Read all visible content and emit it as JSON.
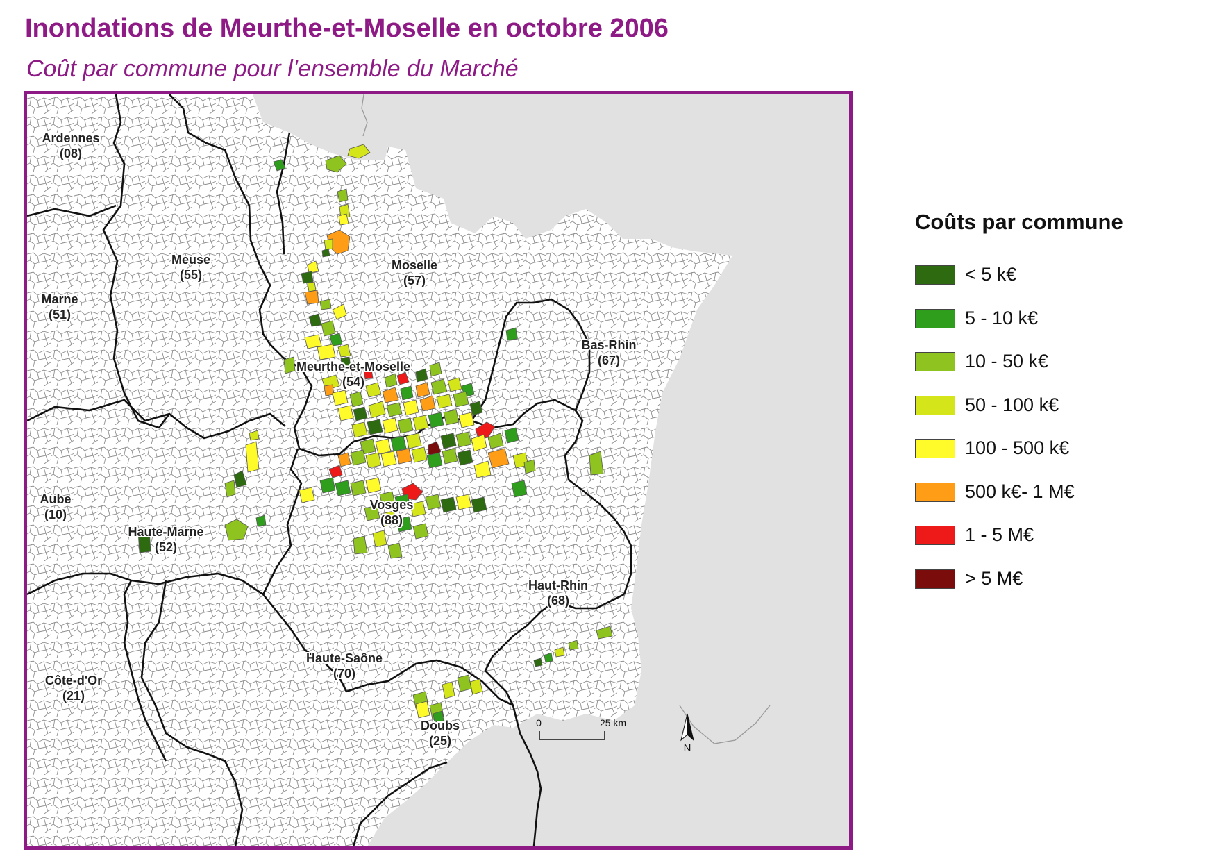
{
  "title": "Inondations de Meurthe-et-Moselle en octobre 2006",
  "subtitle": "Coût par commune pour l’ensemble du Marché",
  "map": {
    "departments": [
      {
        "name": "Ardennes",
        "code": "(08)"
      },
      {
        "name": "Meuse",
        "code": "(55)"
      },
      {
        "name": "Moselle",
        "code": "(57)"
      },
      {
        "name": "Marne",
        "code": "(51)"
      },
      {
        "name": "Bas-Rhin",
        "code": "(67)"
      },
      {
        "name": "Meurthe-et-Moselle",
        "code": "(54)"
      },
      {
        "name": "Aube",
        "code": "(10)"
      },
      {
        "name": "Vosges",
        "code": "(88)"
      },
      {
        "name": "Haute-Marne",
        "code": "(52)"
      },
      {
        "name": "Haut-Rhin",
        "code": "(68)"
      },
      {
        "name": "Haute-Saône",
        "code": "(70)"
      },
      {
        "name": "Côte-d'Or",
        "code": "(21)"
      },
      {
        "name": "Doubs",
        "code": "(25)"
      }
    ],
    "scale_bar": {
      "start": "0",
      "end": "25 km"
    },
    "north_label": "N"
  },
  "legend": {
    "title": "Coûts par commune",
    "items": [
      {
        "label": "< 5 k€",
        "color": "#2e6b10"
      },
      {
        "label": "5 - 10 k€",
        "color": "#2f9e1c"
      },
      {
        "label": "10 - 50 k€",
        "color": "#8fc31f"
      },
      {
        "label": "50 - 100 k€",
        "color": "#d4e619"
      },
      {
        "label": "100 - 500 k€",
        "color": "#fffb2a"
      },
      {
        "label": "500 k€- 1 M€",
        "color": "#ff9d16"
      },
      {
        "label": "1 - 5 M€",
        "color": "#ee1a1a"
      },
      {
        "label": "> 5 M€",
        "color": "#7a0c0c"
      }
    ]
  }
}
